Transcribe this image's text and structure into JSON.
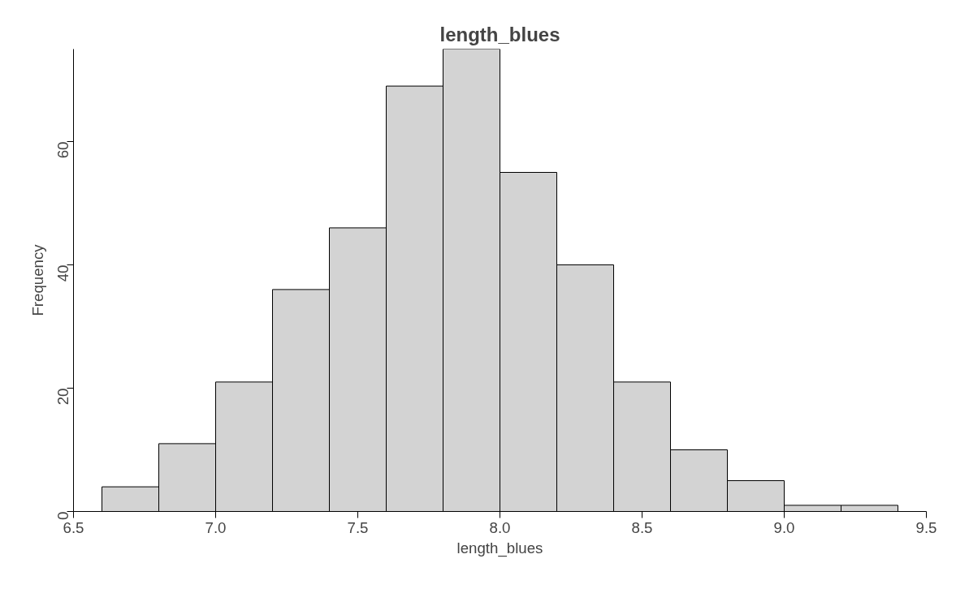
{
  "chart_data": {
    "type": "histogram",
    "title": "length_blues",
    "xlabel": "length_blues",
    "ylabel": "Frequency",
    "bins": [
      6.6,
      6.8,
      7.0,
      7.2,
      7.4,
      7.6,
      7.8,
      8.0,
      8.2,
      8.4,
      8.6,
      8.8,
      9.0,
      9.2,
      9.4
    ],
    "values": [
      4,
      11,
      21,
      36,
      46,
      69,
      75,
      55,
      40,
      21,
      10,
      5,
      1,
      1
    ],
    "color": "#d3d3d3",
    "xlim": [
      6.5,
      9.5
    ],
    "xticks": [
      6.5,
      {
        "value": 7,
        "label": "7.0"
      },
      7.5,
      {
        "value": 8,
        "label": "8.0"
      },
      8.5,
      {
        "value": 9,
        "label": "9.0"
      },
      9.5
    ],
    "ylim": [
      0,
      75
    ],
    "yticks": [
      0,
      20,
      40,
      60
    ],
    "grid": false
  }
}
